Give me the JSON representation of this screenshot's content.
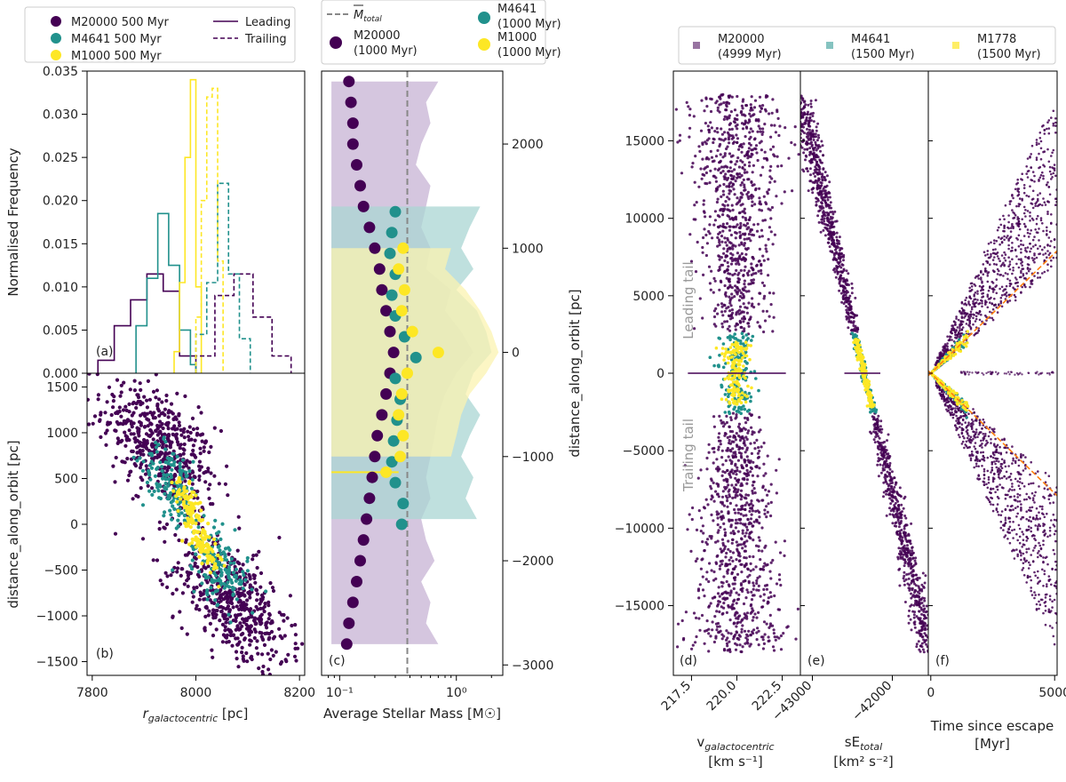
{
  "colors": {
    "purple": "#440154",
    "teal": "#21918c",
    "yellow": "#fde725",
    "orange": "#ff7f0e",
    "gray": "#888888",
    "purple_band": "#c7b3d4",
    "teal_band": "#a9d6d3",
    "yellow_band": "#fbf3b0"
  },
  "legends": {
    "left": {
      "items": [
        "M20000 500 Myr",
        "M4641 500 Myr",
        "M1000 500 Myr"
      ],
      "lines": [
        "Leading",
        "Trailing"
      ]
    },
    "middle": {
      "mean_label": "M",
      "mean_sub": "total",
      "items": [
        "M20000",
        "(1000 Myr)",
        "M4641",
        "(1000 Myr)",
        "M1000",
        "(1000 Myr)"
      ]
    },
    "right": {
      "items": [
        "M20000",
        "(4999 Myr)",
        "M4641",
        "(1500 Myr)",
        "M1778",
        "(1500 Myr)"
      ]
    }
  },
  "chart_data": [
    {
      "panel": "(a)",
      "type": "histogram",
      "ylabel": "Normalised Frequency",
      "xlim": [
        7800,
        8200
      ],
      "ylim": [
        0,
        0.035
      ],
      "yticks": [
        "0.000",
        "0.005",
        "0.010",
        "0.015",
        "0.020",
        "0.025",
        "0.030",
        "0.035"
      ],
      "series": [
        {
          "name": "M20000 leading",
          "style": "solid",
          "edges": [
            7820,
            7850,
            7880,
            7910,
            7940,
            7970,
            8000
          ],
          "values": [
            0.0015,
            0.0055,
            0.0085,
            0.0115,
            0.0095,
            0.002
          ]
        },
        {
          "name": "M4641 leading",
          "style": "solid",
          "edges": [
            7890,
            7910,
            7930,
            7950,
            7970,
            7990,
            8000
          ],
          "values": [
            0.0055,
            0.011,
            0.0185,
            0.0125,
            0.005,
            0.001
          ]
        },
        {
          "name": "M1000 leading",
          "style": "solid",
          "edges": [
            7960,
            7970,
            7980,
            7990,
            8000,
            8010
          ],
          "values": [
            0.0025,
            0.0105,
            0.025,
            0.034,
            0.01
          ]
        },
        {
          "name": "M20000 trailing",
          "style": "dashed",
          "edges": [
            8000,
            8035,
            8070,
            8105,
            8140,
            8175
          ],
          "values": [
            0.002,
            0.009,
            0.0115,
            0.0065,
            0.002
          ]
        },
        {
          "name": "M4641 trailing",
          "style": "dashed",
          "edges": [
            8000,
            8020,
            8040,
            8060,
            8080,
            8100
          ],
          "values": [
            0.0045,
            0.0105,
            0.022,
            0.0115,
            0.004
          ]
        },
        {
          "name": "M1000 trailing",
          "style": "dashed",
          "edges": [
            8000,
            8010,
            8020,
            8030,
            8040,
            8050
          ],
          "values": [
            0.0065,
            0.02,
            0.032,
            0.033,
            0.013
          ]
        }
      ]
    },
    {
      "panel": "(b)",
      "type": "scatter",
      "ylabel": "distance_along_orbit [pc]",
      "xlabel": "r_galactocentric [pc]",
      "xlabel_main": "r",
      "xlabel_sub": "galactocentric",
      "xlabel_unit": " [pc]",
      "xlim": [
        7790,
        8210
      ],
      "ylim": [
        -1650,
        1650
      ],
      "xticks": [
        "7800",
        "8000",
        "8200"
      ],
      "yticks": [
        "-1500",
        "-1000",
        "-500",
        "0",
        "500",
        "1000",
        "1500"
      ]
    },
    {
      "panel": "(c)",
      "type": "scatter",
      "xlabel": "Average Stellar Mass [M☉]",
      "ylabel": "distance_along_orbit [pc]",
      "xscale": "log",
      "xlim": [
        0.07,
        2.5
      ],
      "ylim": [
        -3100,
        2700
      ],
      "xticks": [
        "10⁻¹",
        "10⁰"
      ],
      "yticks": [
        "-3000",
        "-2000",
        "-1000",
        "0",
        "1000",
        "2000"
      ],
      "mean_mass": 0.38,
      "series": [
        {
          "name": "M20000",
          "y": [
            2600,
            2400,
            2200,
            2000,
            1800,
            1600,
            1400,
            1200,
            1000,
            800,
            600,
            400,
            200,
            0,
            -200,
            -400,
            -600,
            -800,
            -1000,
            -1200,
            -1400,
            -1600,
            -1800,
            -2000,
            -2200,
            -2400,
            -2600,
            -2800
          ],
          "mass": [
            0.12,
            0.125,
            0.13,
            0.13,
            0.14,
            0.15,
            0.16,
            0.18,
            0.2,
            0.22,
            0.23,
            0.25,
            0.27,
            0.29,
            0.27,
            0.25,
            0.23,
            0.21,
            0.2,
            0.19,
            0.18,
            0.17,
            0.16,
            0.15,
            0.14,
            0.13,
            0.12,
            0.115
          ]
        },
        {
          "name": "M4641",
          "y": [
            1350,
            1150,
            950,
            750,
            550,
            350,
            150,
            -50,
            -250,
            -450,
            -650,
            -850,
            -1050,
            -1250,
            -1450,
            -1650
          ],
          "mass": [
            0.3,
            0.28,
            0.27,
            0.3,
            0.28,
            0.3,
            0.36,
            0.45,
            0.3,
            0.33,
            0.31,
            0.29,
            0.28,
            0.3,
            0.35,
            0.34
          ]
        },
        {
          "name": "M1000",
          "y": [
            1000,
            800,
            600,
            400,
            200,
            0,
            -200,
            -400,
            -600,
            -800,
            -1000,
            -1150
          ],
          "mass": [
            0.35,
            0.32,
            0.36,
            0.34,
            0.42,
            0.7,
            0.38,
            0.34,
            0.32,
            0.35,
            0.33,
            0.25
          ]
        }
      ]
    },
    {
      "panel": "(d)",
      "type": "scatter",
      "xlabel": "v_galactocentric [km s⁻¹]",
      "xlabel_main": "v",
      "xlabel_sub": "galactocentric",
      "xlabel_unit": "[km s⁻¹]",
      "xlim": [
        216.5,
        223.5
      ],
      "ylim": [
        -19500,
        19500
      ],
      "xticks": [
        "217.5",
        "220.0",
        "222.5"
      ],
      "yticks": [
        "-15000",
        "-10000",
        "-5000",
        "0",
        "5000",
        "10000",
        "15000"
      ],
      "annotations": [
        "Leading tail",
        "Trailing tail"
      ]
    },
    {
      "panel": "(e)",
      "type": "scatter",
      "xlabel": "sE_total [km² s⁻²]",
      "xlabel_main": "sE",
      "xlabel_sub": "total",
      "xlabel_unit": "[km² s⁻²]",
      "xlim": [
        -43150,
        -41550
      ],
      "ylim": [
        -19500,
        19500
      ],
      "xticks": [
        "-43000",
        "-42000"
      ]
    },
    {
      "panel": "(f)",
      "type": "scatter",
      "xlabel": "Time since escape [Myr]",
      "xlabel_line1": "Time since escape",
      "xlabel_line2": "[Myr]",
      "xlim": [
        -100,
        5100
      ],
      "ylim": [
        -19500,
        19500
      ],
      "xticks": [
        "0",
        "5000"
      ],
      "fit_slope_pc_per_myr": 1.55
    }
  ]
}
